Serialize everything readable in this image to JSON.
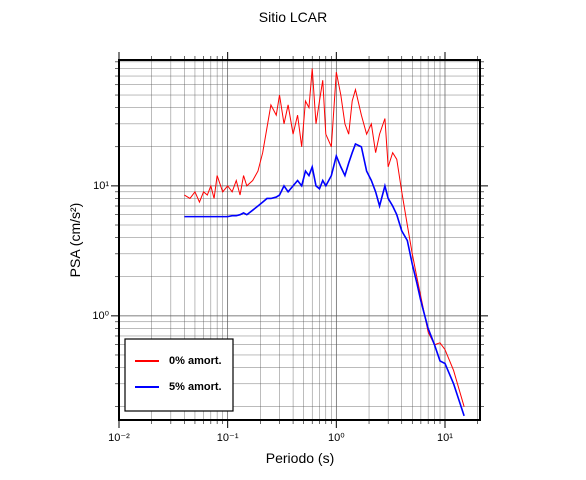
{
  "chart_data": {
    "type": "line",
    "title": "Sitio LCAR",
    "x_label": "Periodo (s)",
    "y_label": "PSA (cm/s²)",
    "log_x": true,
    "log_y": true,
    "grid": true,
    "legend_position": "lower-left",
    "xlim": [
      0.01,
      21
    ],
    "ylim": [
      0.158,
      93
    ],
    "xticks": [
      {
        "value": 0.01,
        "label": "10⁻²"
      },
      {
        "value": 0.1,
        "label": "10⁻¹"
      },
      {
        "value": 1,
        "label": "10⁰"
      },
      {
        "value": 10,
        "label": "10¹"
      }
    ],
    "yticks": [
      {
        "value": 1,
        "label": "10⁰"
      },
      {
        "value": 10,
        "label": "10¹"
      }
    ],
    "xminorticks": [
      0.02,
      0.03,
      0.04,
      0.05,
      0.06,
      0.07,
      0.08,
      0.09,
      0.2,
      0.3,
      0.4,
      0.5,
      0.6,
      0.7,
      0.8,
      0.9,
      2,
      3,
      4,
      5,
      6,
      7,
      8,
      9,
      20
    ],
    "yminorticks": [
      0.2,
      0.3,
      0.4,
      0.5,
      0.6,
      0.7,
      0.8,
      0.9,
      2,
      3,
      4,
      5,
      6,
      7,
      8,
      9,
      20,
      30,
      40,
      50,
      60,
      70,
      80,
      90
    ],
    "x": [
      0.04,
      0.045,
      0.05,
      0.055,
      0.06,
      0.065,
      0.07,
      0.075,
      0.08,
      0.09,
      0.1,
      0.11,
      0.12,
      0.13,
      0.14,
      0.15,
      0.17,
      0.19,
      0.21,
      0.23,
      0.25,
      0.28,
      0.3,
      0.33,
      0.36,
      0.4,
      0.44,
      0.48,
      0.52,
      0.56,
      0.6,
      0.65,
      0.7,
      0.75,
      0.8,
      0.9,
      1.0,
      1.1,
      1.2,
      1.3,
      1.4,
      1.5,
      1.7,
      1.9,
      2.1,
      2.3,
      2.5,
      2.8,
      3.0,
      3.3,
      3.6,
      4.0,
      4.5,
      5.0,
      5.5,
      6.0,
      7.0,
      8.0,
      9.0,
      10,
      12,
      15
    ],
    "series": [
      {
        "name": "0% amort.",
        "color": "#ff0000",
        "width": 1,
        "values": [
          8.5,
          8,
          9,
          7.5,
          9,
          8.5,
          10,
          8,
          12,
          9,
          10,
          9,
          11,
          8.5,
          12,
          10,
          11,
          13,
          18,
          28,
          42,
          35,
          50,
          30,
          42,
          25,
          35,
          20,
          45,
          40,
          80,
          30,
          45,
          65,
          25,
          20,
          75,
          50,
          30,
          25,
          45,
          55,
          35,
          25,
          30,
          18,
          25,
          33,
          14,
          18,
          16,
          9,
          5,
          3,
          2,
          1.4,
          0.75,
          0.6,
          0.62,
          0.55,
          0.38,
          0.2
        ]
      },
      {
        "name": "5% amort.",
        "color": "#0000ff",
        "width": 1.6,
        "values": [
          5.8,
          5.8,
          5.8,
          5.8,
          5.8,
          5.8,
          5.8,
          5.8,
          5.8,
          5.8,
          5.8,
          5.9,
          5.9,
          6.0,
          6.2,
          6.0,
          6.5,
          7.0,
          7.5,
          8.0,
          8.0,
          8.2,
          8.5,
          10,
          9.0,
          10,
          11,
          10,
          13,
          12,
          14,
          10,
          9.5,
          11,
          10,
          12,
          17,
          14,
          12,
          15,
          18,
          21,
          20,
          13,
          11,
          9,
          7,
          10,
          8,
          7,
          6,
          4.5,
          3.8,
          2.5,
          1.8,
          1.3,
          0.8,
          0.6,
          0.45,
          0.43,
          0.3,
          0.17
        ]
      }
    ]
  }
}
